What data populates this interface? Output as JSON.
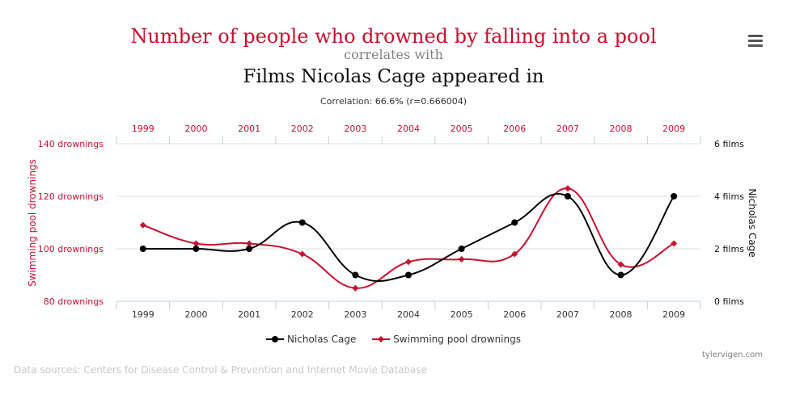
{
  "header": {
    "title_line1": "Number of people who drowned by falling into a pool",
    "title_line2": "correlates with",
    "title_line3": "Films Nicolas Cage appeared in",
    "correlation": "Correlation: 66.6% (r=0.666004)"
  },
  "menu": {
    "icon": "hamburger-menu-icon"
  },
  "footer": {
    "credits": "tylervigen.com",
    "sources": "Data sources: Centers for Disease Control & Prevention and Internet Movie Database"
  },
  "colors": {
    "red": "#c8102e",
    "black": "#000000",
    "grid": "#d8dfe8"
  },
  "chart_data": {
    "type": "line",
    "x": [
      "1999",
      "2000",
      "2001",
      "2002",
      "2003",
      "2004",
      "2005",
      "2006",
      "2007",
      "2008",
      "2009"
    ],
    "series": [
      {
        "name": "Nicholas Cage",
        "axis": "right",
        "color": "#000000",
        "marker": "circle",
        "values": [
          2,
          2,
          2,
          3,
          1,
          1,
          2,
          3,
          4,
          1,
          4
        ]
      },
      {
        "name": "Swimming pool drownings",
        "axis": "left",
        "color": "#c8102e",
        "marker": "diamond",
        "values": [
          109,
          102,
          102,
          98,
          85,
          95,
          96,
          98,
          123,
          94,
          102
        ]
      }
    ],
    "left_axis": {
      "label": "Swimming pool drownings",
      "ylim": [
        80,
        140
      ],
      "ticks": [
        "80 drownings",
        "100 drownings",
        "120 drownings",
        "140 drownings"
      ]
    },
    "right_axis": {
      "label": "Nicholas Cage",
      "ylim": [
        0,
        6
      ],
      "ticks": [
        "0 films",
        "2 films",
        "4 films",
        "6 films"
      ]
    },
    "grid": true,
    "legend": "bottom-center"
  }
}
